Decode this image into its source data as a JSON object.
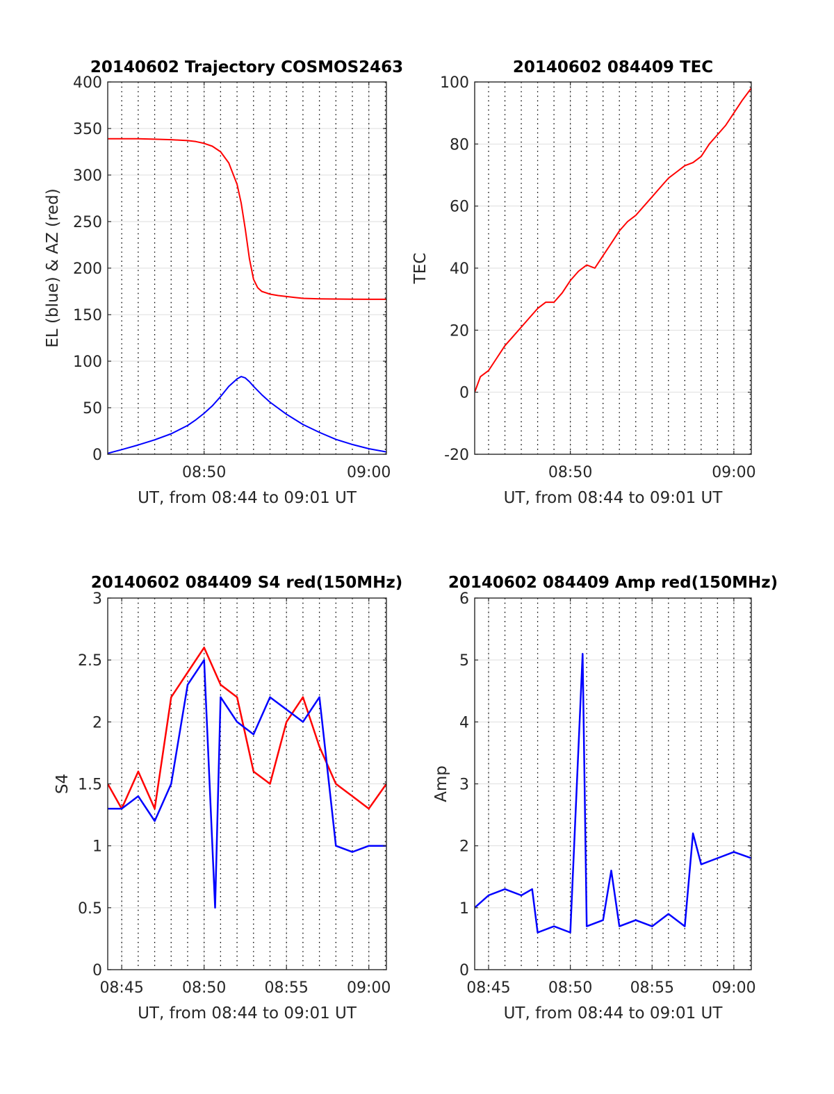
{
  "chart_data": [
    {
      "id": "trajectory",
      "type": "line",
      "title": "20140602 Trajectory COSMOS2463",
      "xlabel": "UT, from 08:44 to 09:01 UT",
      "ylabel": "EL (blue) & AZ (red)",
      "xlim": [
        "08:44:09",
        "09:01:04"
      ],
      "ylim": [
        0,
        400
      ],
      "yticks": [
        0,
        50,
        100,
        150,
        200,
        250,
        300,
        350,
        400
      ],
      "xticks": [
        "08:50",
        "09:00"
      ],
      "grid": true,
      "series": [
        {
          "color": "#ff0000",
          "x": [
            "08:44:09",
            "08:45:00",
            "08:46:00",
            "08:47:00",
            "08:48:00",
            "08:48:30",
            "08:49:00",
            "08:49:30",
            "08:50:00",
            "08:50:30",
            "08:51:00",
            "08:51:30",
            "08:52:00",
            "08:52:15",
            "08:52:30",
            "08:52:45",
            "08:53:00",
            "08:53:15",
            "08:53:30",
            "08:54:00",
            "08:54:30",
            "08:55:00",
            "08:55:30",
            "08:56:00",
            "08:57:00",
            "08:58:00",
            "08:59:00",
            "09:00:00",
            "09:01:04"
          ],
          "values": [
            339,
            339,
            339,
            338.5,
            338,
            337.5,
            337,
            336,
            334,
            331,
            325,
            313,
            290,
            270,
            242,
            210,
            188,
            179,
            175,
            172,
            170.5,
            169.5,
            168.5,
            167.5,
            167,
            166.8,
            166.6,
            166.5,
            166.5
          ]
        },
        {
          "color": "#0000ff",
          "x": [
            "08:44:09",
            "08:45:00",
            "08:46:00",
            "08:47:00",
            "08:48:00",
            "08:49:00",
            "08:49:30",
            "08:50:00",
            "08:50:30",
            "08:51:00",
            "08:51:30",
            "08:52:00",
            "08:52:15",
            "08:52:30",
            "08:52:45",
            "08:53:00",
            "08:53:30",
            "08:54:00",
            "08:55:00",
            "08:56:00",
            "08:57:00",
            "08:58:00",
            "08:59:00",
            "09:00:00",
            "09:01:04"
          ],
          "values": [
            1,
            5,
            10,
            15.5,
            22,
            31,
            37,
            44,
            52,
            62,
            73,
            81,
            83.5,
            82,
            78,
            73,
            64,
            56,
            43,
            32,
            23.5,
            16,
            10.5,
            6,
            2.5
          ]
        }
      ]
    },
    {
      "id": "tec",
      "type": "line",
      "title": "20140602 084409 TEC",
      "xlabel": "UT, from 08:44 to 09:01 UT",
      "ylabel": "TEC",
      "xlim": [
        "08:44:09",
        "09:01:04"
      ],
      "ylim": [
        -20,
        100
      ],
      "yticks": [
        -20,
        0,
        20,
        40,
        60,
        80,
        100
      ],
      "xticks": [
        "08:50",
        "09:00"
      ],
      "grid": true,
      "series": [
        {
          "color": "#ff0000",
          "x": [
            "08:44:09",
            "08:44:30",
            "08:45:00",
            "08:45:30",
            "08:46:00",
            "08:46:30",
            "08:47:00",
            "08:47:30",
            "08:48:00",
            "08:48:30",
            "08:49:00",
            "08:49:30",
            "08:50:00",
            "08:50:30",
            "08:51:00",
            "08:51:30",
            "08:52:00",
            "08:52:30",
            "08:53:00",
            "08:53:30",
            "08:54:00",
            "08:54:30",
            "08:55:00",
            "08:55:30",
            "08:56:00",
            "08:56:30",
            "08:57:00",
            "08:57:30",
            "08:58:00",
            "08:58:30",
            "08:59:00",
            "08:59:30",
            "09:00:00",
            "09:00:30",
            "09:01:04"
          ],
          "values": [
            0,
            5,
            7,
            11,
            15,
            18,
            21,
            24,
            27,
            29,
            29,
            32,
            36,
            39,
            41,
            40,
            44,
            48,
            52,
            55,
            57,
            60,
            63,
            66,
            69,
            71,
            73,
            74,
            76,
            80,
            83,
            86,
            90,
            94,
            98
          ]
        }
      ]
    },
    {
      "id": "s4",
      "type": "line",
      "title": "20140602 084409 S4 red(150MHz)",
      "xlabel": "UT, from 08:44 to 09:01 UT",
      "ylabel": "S4",
      "xlim": [
        "08:44:09",
        "09:01:04"
      ],
      "ylim": [
        0,
        3
      ],
      "yticks": [
        0,
        0.5,
        1,
        1.5,
        2,
        2.5,
        3
      ],
      "xticks": [
        "08:45",
        "08:50",
        "08:55",
        "09:00"
      ],
      "grid": true,
      "series": [
        {
          "color": "#ff0000",
          "x": [
            "08:44:09",
            "08:45:00",
            "08:46:00",
            "08:47:00",
            "08:48:00",
            "08:49:00",
            "08:50:00",
            "08:51:00",
            "08:52:00",
            "08:53:00",
            "08:54:00",
            "08:55:00",
            "08:56:00",
            "08:57:00",
            "08:58:00",
            "08:59:00",
            "09:00:00",
            "09:01:04"
          ],
          "values": [
            1.5,
            1.3,
            1.6,
            1.3,
            2.2,
            2.4,
            2.6,
            2.3,
            2.2,
            1.6,
            1.5,
            2.0,
            2.2,
            1.8,
            1.5,
            1.4,
            1.3,
            1.5
          ]
        },
        {
          "color": "#0000ff",
          "x": [
            "08:44:09",
            "08:45:00",
            "08:46:00",
            "08:47:00",
            "08:48:00",
            "08:49:00",
            "08:50:00",
            "08:50:40",
            "08:51:00",
            "08:52:00",
            "08:53:00",
            "08:54:00",
            "08:55:00",
            "08:56:00",
            "08:57:00",
            "08:58:00",
            "08:59:00",
            "09:00:00",
            "09:01:04"
          ],
          "values": [
            1.3,
            1.3,
            1.4,
            1.2,
            1.5,
            2.3,
            2.5,
            0.5,
            2.2,
            2.0,
            1.9,
            2.2,
            2.1,
            2.0,
            2.2,
            1.0,
            0.95,
            1.0,
            1.0
          ]
        }
      ]
    },
    {
      "id": "amp",
      "type": "line",
      "title": "20140602 084409 Amp red(150MHz)",
      "xlabel": "UT, from 08:44 to 09:01 UT",
      "ylabel": "Amp",
      "xlim": [
        "08:44:09",
        "09:01:04"
      ],
      "ylim": [
        0,
        6
      ],
      "yticks": [
        0,
        1,
        2,
        3,
        4,
        5,
        6
      ],
      "xticks": [
        "08:45",
        "08:50",
        "08:55",
        "09:00"
      ],
      "grid": true,
      "series": [
        {
          "color": "#0000ff",
          "x": [
            "08:44:09",
            "08:45:00",
            "08:46:00",
            "08:47:00",
            "08:47:40",
            "08:48:00",
            "08:49:00",
            "08:50:00",
            "08:50:45",
            "08:51:00",
            "08:52:00",
            "08:52:30",
            "08:53:00",
            "08:54:00",
            "08:55:00",
            "08:56:00",
            "08:57:00",
            "08:57:30",
            "08:58:00",
            "08:59:00",
            "09:00:00",
            "09:01:04"
          ],
          "values": [
            1.0,
            1.2,
            1.3,
            1.2,
            1.3,
            0.6,
            0.7,
            0.6,
            5.1,
            0.7,
            0.8,
            1.6,
            0.7,
            0.8,
            0.7,
            0.9,
            0.7,
            2.2,
            1.7,
            1.8,
            1.9,
            1.8
          ]
        }
      ]
    }
  ]
}
